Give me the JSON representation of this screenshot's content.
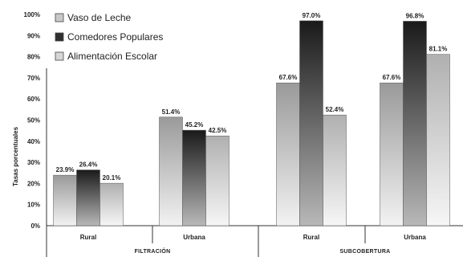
{
  "chart_data": {
    "type": "bar",
    "title": "",
    "ylabel": "Tasas porcentuales",
    "xlabel": "",
    "ylim": [
      0,
      100
    ],
    "yticks": [
      "0%",
      "10%",
      "20%",
      "30%",
      "40%",
      "50%",
      "60%",
      "70%",
      "80%",
      "90%",
      "100%"
    ],
    "categories": [
      "Rural",
      "Urbana",
      "Rural",
      "Urbana"
    ],
    "groups": [
      {
        "label": "FILTRACIÓN",
        "categories": [
          0,
          1
        ]
      },
      {
        "label": "SUBCOBERTURA",
        "categories": [
          2,
          3
        ]
      }
    ],
    "series": [
      {
        "name": "Vaso de Leche",
        "values": [
          23.9,
          51.4,
          67.6,
          67.6
        ],
        "labels": [
          "23.9%",
          "51.4%",
          "67.6%",
          "67.6%"
        ],
        "color": "#a8a8a8"
      },
      {
        "name": "Comedores Populares",
        "values": [
          26.4,
          45.2,
          97.0,
          96.8
        ],
        "labels": [
          "26.4%",
          "45.2%",
          "97.0%",
          "96.8%"
        ],
        "color": "#3a3a3a"
      },
      {
        "name": "Alimentación Escolar",
        "values": [
          20.1,
          42.5,
          52.4,
          81.1
        ],
        "labels": [
          "20.1%",
          "42.5%",
          "52.4%",
          "81.1%"
        ],
        "color": "#c4c4c4"
      }
    ],
    "legend_position": "top-left",
    "grid": false
  }
}
